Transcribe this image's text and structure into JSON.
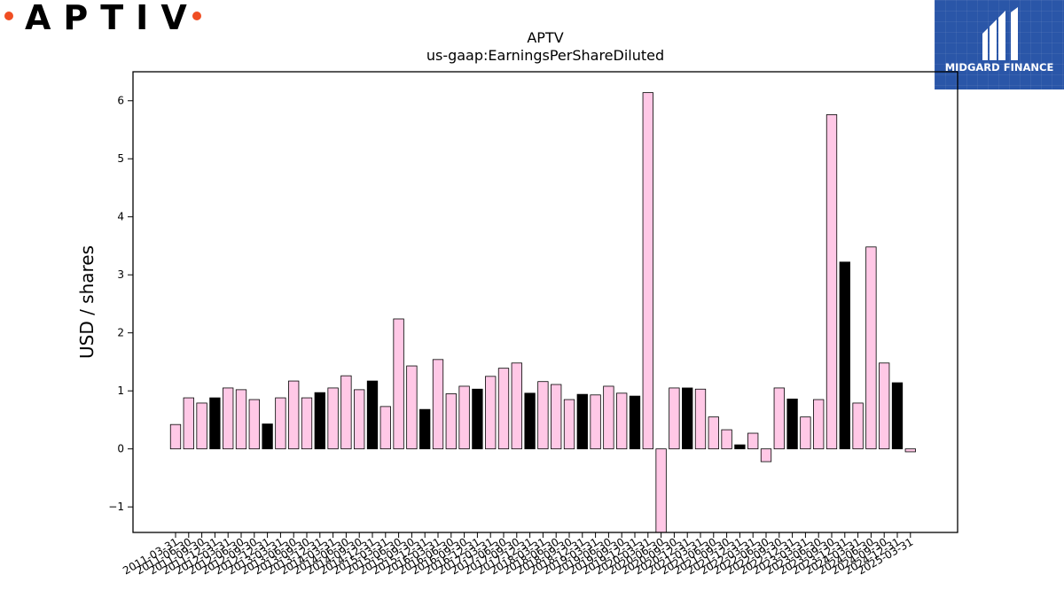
{
  "logo": {
    "text": "APTIV"
  },
  "badge": {
    "text": "MIDGARD FINANCE"
  },
  "chart_data": {
    "type": "bar",
    "title": "APTV",
    "subtitle": "us-gaap:EarningsPerShareDiluted",
    "xlabel": "",
    "ylabel": "USD / shares",
    "ylim": [
      -1.44,
      6.5
    ],
    "yticks": [
      -1,
      0,
      1,
      2,
      3,
      4,
      5,
      6
    ],
    "grid": false,
    "colors": {
      "quarter": "#ffc8e6",
      "annual": "#000000",
      "edge": "#000000"
    },
    "categories": [
      "2011-03-31",
      "2011-06-30",
      "2011-09-30",
      "2011-12-31",
      "2012-03-31",
      "2012-06-30",
      "2012-09-30",
      "2012-12-31",
      "2013-03-31",
      "2013-06-30",
      "2013-09-30",
      "2013-12-31",
      "2014-03-31",
      "2014-06-30",
      "2014-09-30",
      "2014-12-31",
      "2015-03-31",
      "2015-06-30",
      "2015-09-30",
      "2015-12-31",
      "2016-03-31",
      "2016-06-30",
      "2016-09-30",
      "2016-12-31",
      "2017-03-31",
      "2017-06-30",
      "2017-09-30",
      "2017-12-31",
      "2018-03-31",
      "2018-06-30",
      "2018-09-30",
      "2018-12-31",
      "2019-03-31",
      "2019-06-30",
      "2019-09-30",
      "2019-12-31",
      "2020-03-31",
      "2020-06-30",
      "2020-09-30",
      "2020-12-31",
      "2021-03-31",
      "2021-06-30",
      "2021-09-30",
      "2021-12-31",
      "2022-03-31",
      "2022-06-30",
      "2022-09-30",
      "2022-12-31",
      "2023-03-31",
      "2023-06-30",
      "2023-09-30",
      "2023-12-31",
      "2024-03-31",
      "2024-06-30",
      "2024-09-30",
      "2024-12-31",
      "2025-03-31"
    ],
    "values": [
      0.42,
      0.88,
      0.79,
      0.88,
      1.05,
      1.02,
      0.85,
      0.43,
      0.88,
      1.17,
      0.88,
      0.97,
      1.05,
      1.26,
      1.02,
      1.17,
      0.73,
      2.24,
      1.43,
      0.68,
      1.54,
      0.95,
      1.08,
      1.03,
      1.25,
      1.39,
      1.48,
      0.96,
      1.16,
      1.11,
      0.85,
      0.94,
      0.93,
      1.08,
      0.96,
      0.91,
      6.14,
      -1.44,
      1.05,
      1.05,
      1.03,
      0.55,
      0.33,
      0.07,
      0.27,
      -0.22,
      1.05,
      0.86,
      0.55,
      0.85,
      5.76,
      3.22,
      0.79,
      3.48,
      1.48,
      1.14,
      -0.05
    ],
    "annual": [
      false,
      false,
      false,
      true,
      false,
      false,
      false,
      true,
      false,
      false,
      false,
      true,
      false,
      false,
      false,
      true,
      false,
      false,
      false,
      true,
      false,
      false,
      false,
      true,
      false,
      false,
      false,
      true,
      false,
      false,
      false,
      true,
      false,
      false,
      false,
      true,
      false,
      false,
      false,
      true,
      false,
      false,
      false,
      true,
      false,
      false,
      false,
      true,
      false,
      false,
      false,
      true,
      false,
      false,
      false,
      true,
      false
    ]
  }
}
